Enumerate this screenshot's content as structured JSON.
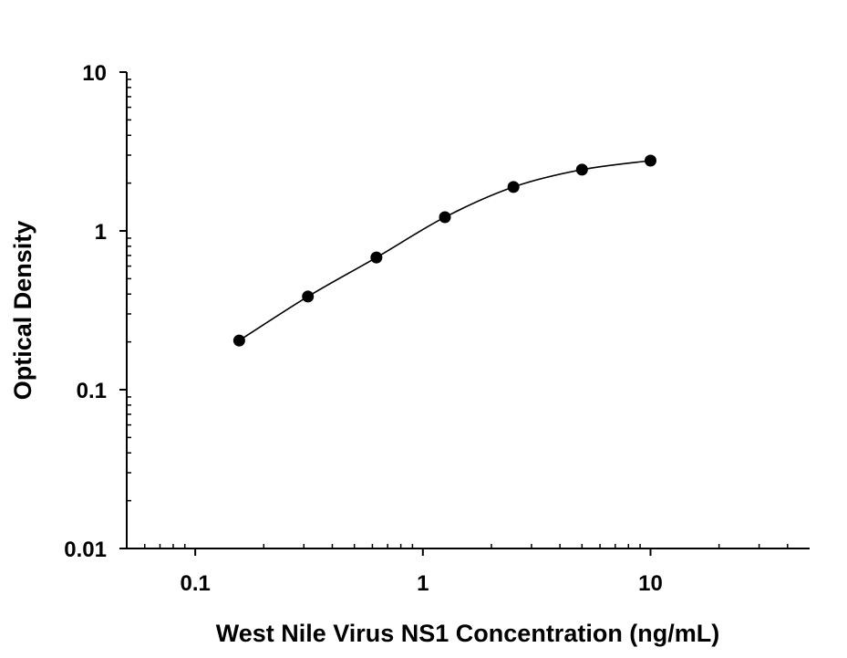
{
  "chart_data": {
    "type": "scatter",
    "title": "",
    "xlabel": "West Nile Virus NS1 Concentration (ng/mL)",
    "ylabel": "Optical Density",
    "x_scale": "log",
    "y_scale": "log",
    "xlim": [
      0.05,
      50
    ],
    "ylim": [
      0.01,
      10
    ],
    "x_ticks": [
      {
        "value": 0.1,
        "label": "0.1"
      },
      {
        "value": 1,
        "label": "1"
      },
      {
        "value": 10,
        "label": "10"
      }
    ],
    "y_ticks": [
      {
        "value": 0.01,
        "label": "0.01"
      },
      {
        "value": 0.1,
        "label": "0.1"
      },
      {
        "value": 1,
        "label": "1"
      },
      {
        "value": 10,
        "label": "10"
      }
    ],
    "grid": false,
    "fit_curve": true,
    "marker_color": "#000000",
    "series": [
      {
        "x": [
          0.156,
          0.3125,
          0.625,
          1.25,
          2.5,
          5,
          10
        ],
        "y": [
          0.204,
          0.386,
          0.68,
          1.22,
          1.89,
          2.43,
          2.77
        ]
      }
    ]
  }
}
